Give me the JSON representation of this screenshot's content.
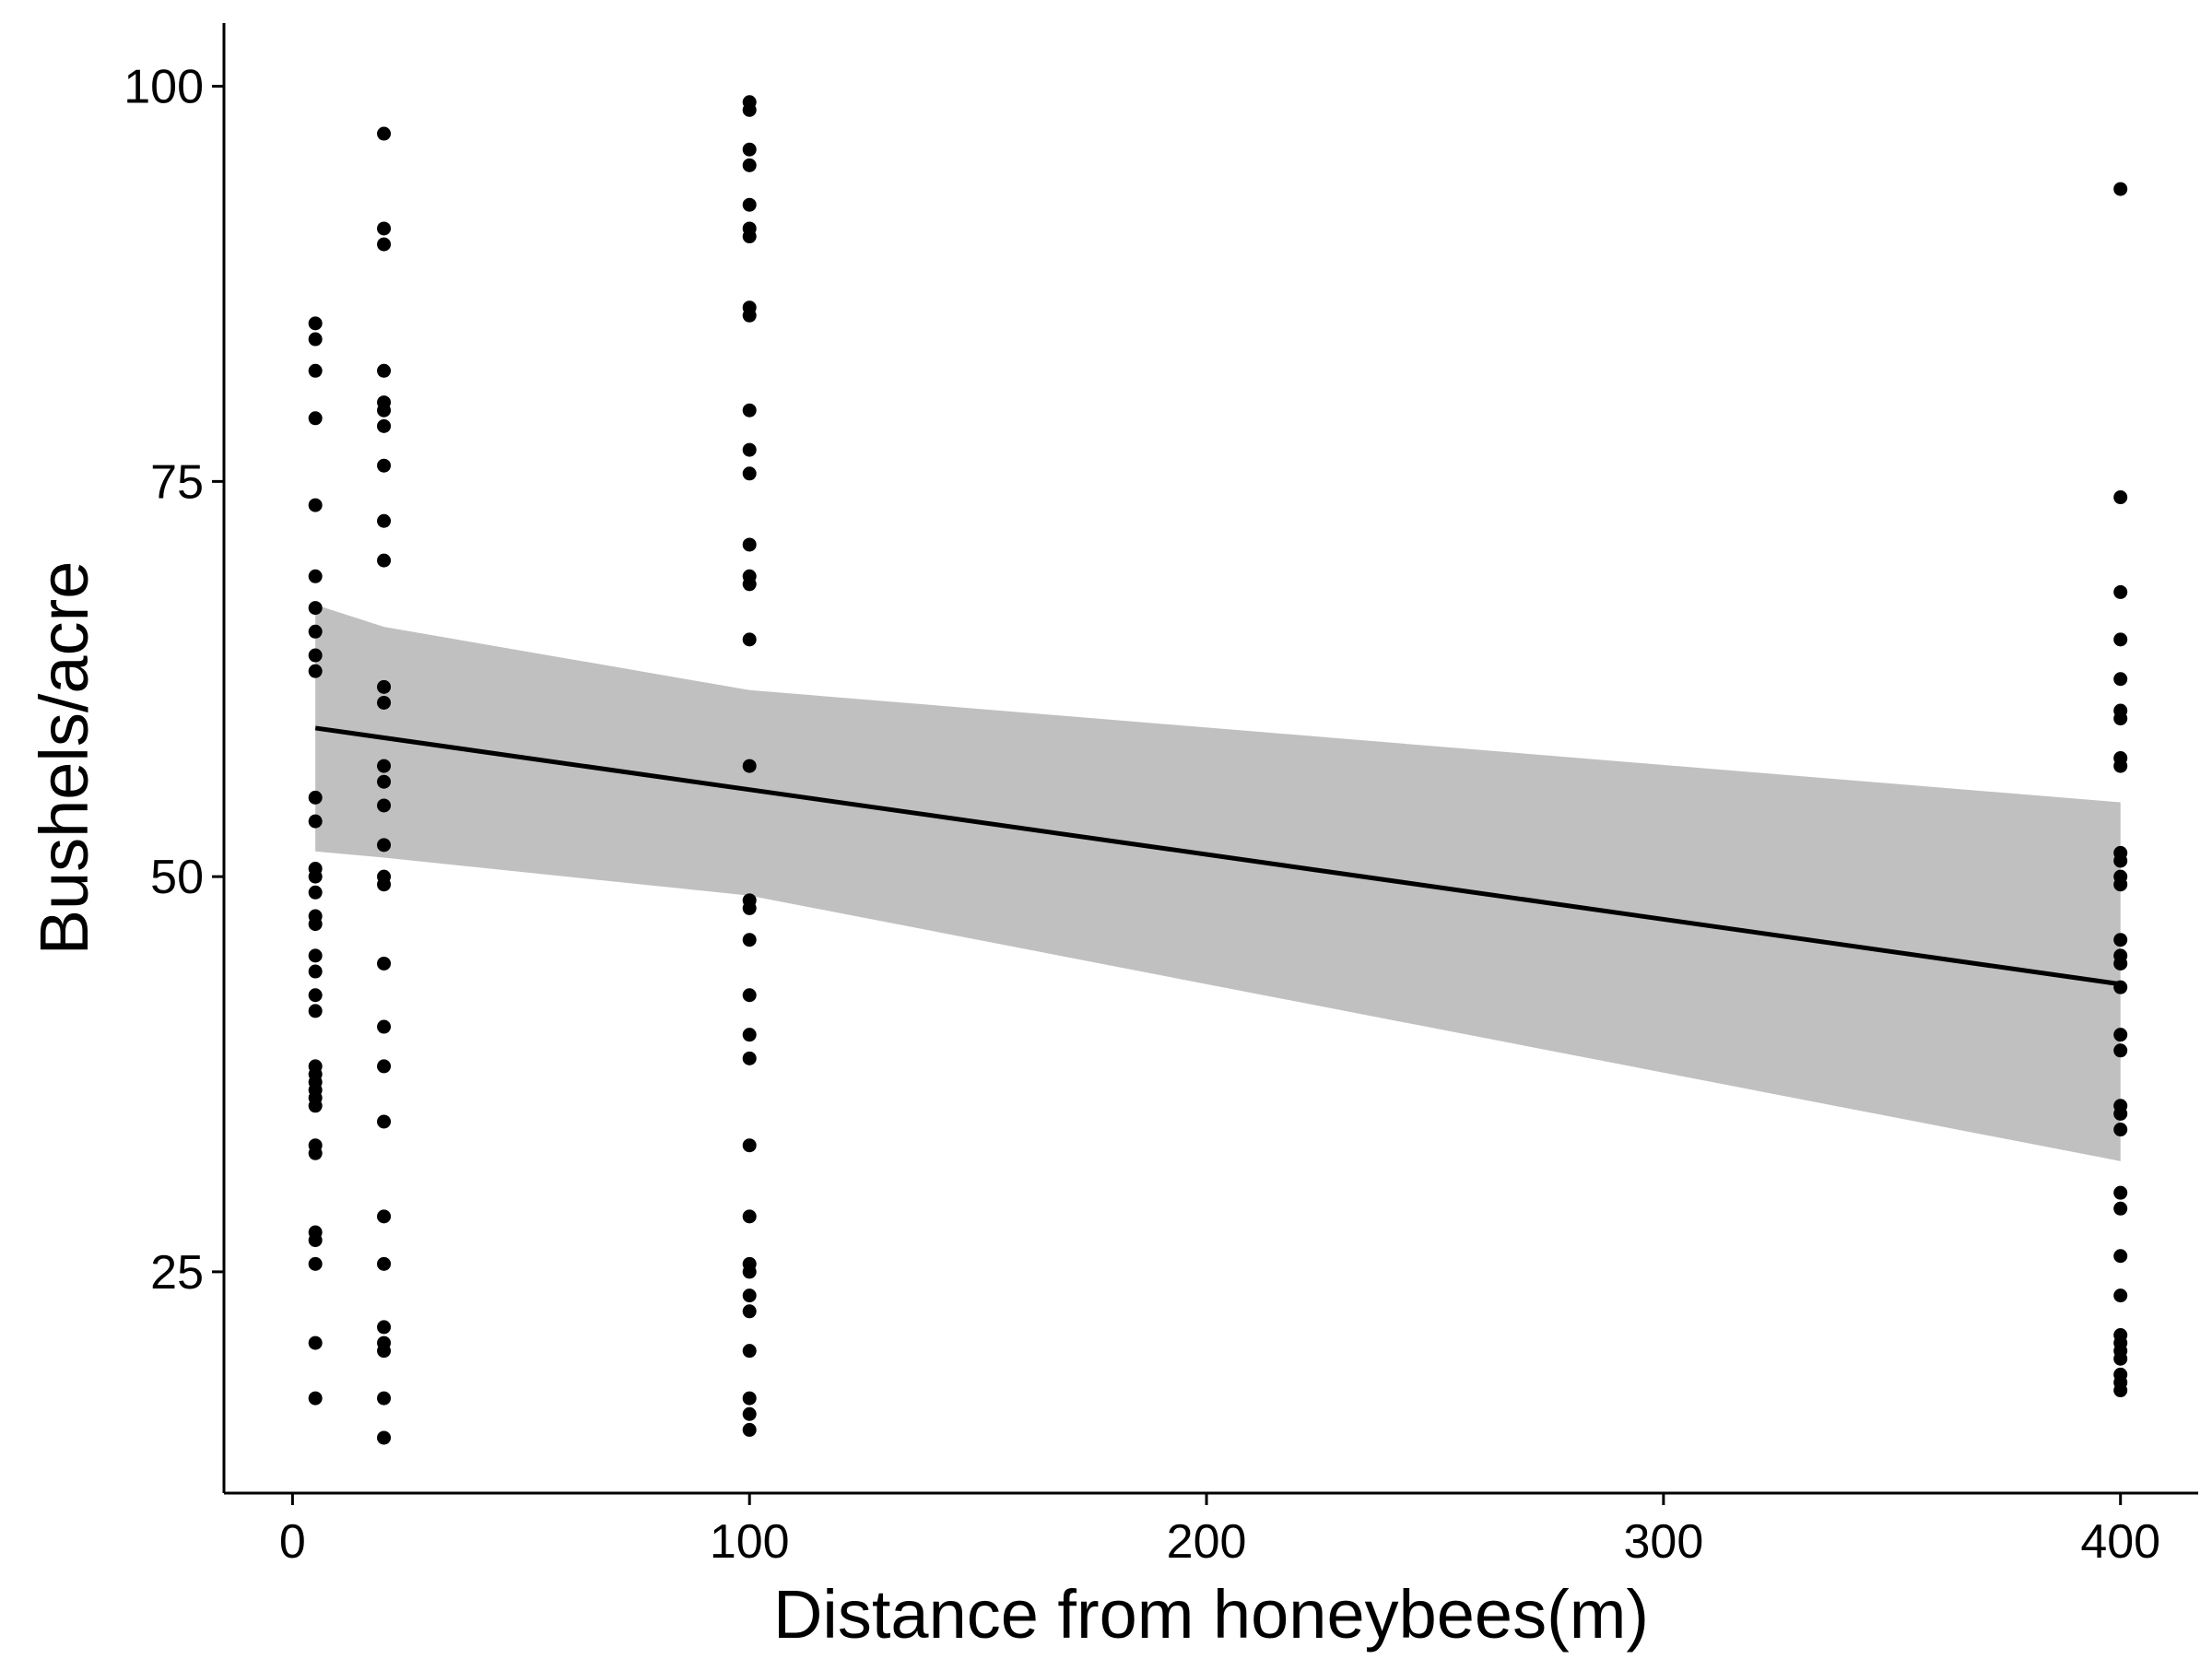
{
  "chart_data": {
    "type": "scatter",
    "xlabel": "Distance from honeybees(m)",
    "ylabel": "Bushels/acre",
    "x_ticks": [
      0,
      100,
      200,
      300,
      400
    ],
    "x_tick_labels": [
      "0",
      "100",
      "200",
      "300",
      "400"
    ],
    "y_ticks": [
      25,
      50,
      75,
      100
    ],
    "y_tick_labels": [
      "25",
      "50",
      "75",
      "100"
    ],
    "xlim": [
      -15,
      417
    ],
    "ylim": [
      11,
      104
    ],
    "grid": false,
    "legend": "none",
    "points": [
      {
        "x": 5,
        "values": [
          85,
          84,
          82,
          79,
          73.5,
          69,
          67,
          65.5,
          64,
          63,
          55,
          53.5,
          50.5,
          50,
          49,
          47.5,
          47,
          45,
          44,
          42.5,
          41.5,
          38,
          37.5,
          37,
          36.5,
          36,
          35.5,
          33,
          32.5,
          27.5,
          27,
          25.5,
          20.5,
          17
        ]
      },
      {
        "x": 20,
        "values": [
          97,
          91,
          90,
          82,
          80,
          79.5,
          78.5,
          76,
          72.5,
          70,
          62,
          61,
          57,
          56,
          54.5,
          52,
          50,
          49.5,
          44.5,
          40.5,
          38,
          34.5,
          28.5,
          25.5,
          21.5,
          20.5,
          20,
          17,
          14.5
        ]
      },
      {
        "x": 100,
        "values": [
          99,
          98.5,
          96,
          95,
          92.5,
          91,
          90.5,
          86,
          85.5,
          79.5,
          77,
          75.5,
          71,
          69,
          68.5,
          65,
          57,
          48.5,
          48,
          46,
          42.5,
          40,
          38.5,
          33,
          28.5,
          25.5,
          25,
          23.5,
          22.5,
          20,
          17,
          16,
          15
        ]
      },
      {
        "x": 400,
        "values": [
          93.5,
          74,
          68,
          65,
          62.5,
          60.5,
          60,
          57.5,
          57,
          51.5,
          51,
          50,
          49.5,
          46,
          45,
          44.5,
          43,
          40,
          39,
          35.5,
          35,
          34,
          30,
          29,
          26,
          23.5,
          21,
          20.5,
          20,
          19.5,
          18.5,
          18,
          17.5
        ]
      }
    ],
    "trend_line": {
      "x": [
        5,
        400
      ],
      "y": [
        59.4,
        43.2
      ],
      "color": "#000000"
    },
    "confidence_band": {
      "x": [
        5,
        20,
        100,
        400
      ],
      "upper": [
        67.2,
        65.8,
        61.8,
        54.7
      ],
      "lower": [
        51.6,
        51.2,
        48.8,
        32
      ],
      "color": "#c0c0c0"
    },
    "point_color": "#000000"
  }
}
